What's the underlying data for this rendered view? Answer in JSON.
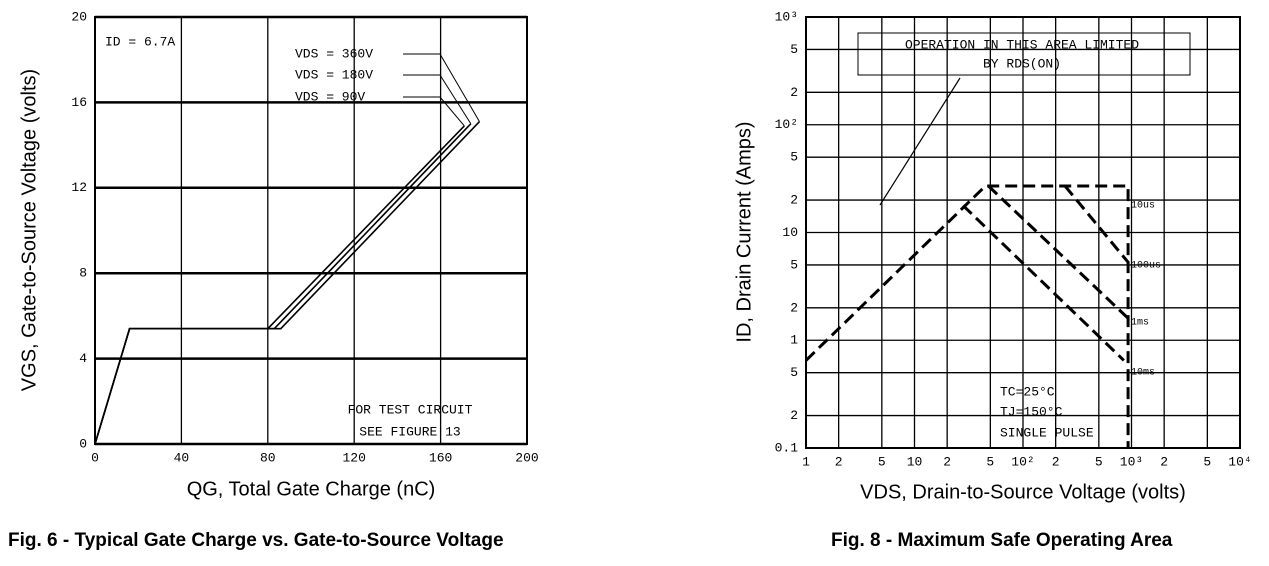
{
  "chart_data": [
    {
      "type": "line",
      "title": "Fig. 6 - Typical Gate Charge vs. Gate-to-Source Voltage",
      "x_label": "QG, Total Gate Charge (nC)",
      "y_label": "VGS, Gate-to-Source Voltage (volts)",
      "xlim": [
        0,
        200
      ],
      "ylim": [
        0,
        20
      ],
      "xticks": [
        0,
        40,
        80,
        120,
        160,
        200
      ],
      "yticks": [
        0,
        4,
        8,
        12,
        16,
        20
      ],
      "grid": true,
      "annotations": [
        "ID = 6.7A",
        "FOR TEST CIRCUIT",
        "SEE FIGURE 13"
      ],
      "series": [
        {
          "name": "VDS = 360V",
          "color": "#000000",
          "x": [
            0,
            16,
            86,
            178
          ],
          "values": [
            0,
            5.4,
            5.4,
            15.1
          ]
        },
        {
          "name": "VDS = 180V",
          "color": "#000000",
          "x": [
            0,
            16,
            83,
            174
          ],
          "values": [
            0,
            5.4,
            5.4,
            15
          ]
        },
        {
          "name": "VDS = 90V",
          "color": "#000000",
          "x": [
            0,
            16,
            80,
            171
          ],
          "values": [
            0,
            5.4,
            5.4,
            14.9
          ]
        }
      ]
    },
    {
      "type": "line",
      "title": "Fig. 8 - Maximum Safe Operating Area",
      "x_label": "VDS, Drain-to-Source Voltage (volts)",
      "y_label": "ID, Drain Current (Amps)",
      "log_scale": true,
      "line_style": "dashed",
      "xlim": [
        1,
        10000
      ],
      "ylim": [
        0.1,
        1000
      ],
      "xticks": [
        1,
        2,
        5,
        10,
        {
          "value": 20,
          "label": "2"
        },
        {
          "value": 50,
          "label": "5"
        },
        {
          "value": 100,
          "label": "10²"
        },
        {
          "value": 200,
          "label": "2"
        },
        {
          "value": 500,
          "label": "5"
        },
        {
          "value": 1000,
          "label": "10³"
        },
        {
          "value": 2000,
          "label": "2"
        },
        {
          "value": 5000,
          "label": "5"
        },
        {
          "value": 10000,
          "label": "10⁴"
        }
      ],
      "yticks": [
        0.1,
        {
          "value": 0.2,
          "label": "2"
        },
        {
          "value": 0.5,
          "label": "5"
        },
        1,
        2,
        5,
        10,
        {
          "value": 20,
          "label": "2"
        },
        {
          "value": 50,
          "label": "5"
        },
        {
          "value": 100,
          "label": "10²"
        },
        {
          "value": 200,
          "label": "2"
        },
        {
          "value": 500,
          "label": "5"
        },
        {
          "value": 1000,
          "label": "10³"
        }
      ],
      "grid": true,
      "annotations": [
        "OPERATION IN THIS AREA LIMITED",
        "BY RDS(ON)",
        "TC=25°C",
        "TJ=150°C",
        "SINGLE PULSE"
      ],
      "series": [
        {
          "name": "10us",
          "color": "#000000",
          "x": [
            1,
            45,
            930,
            930
          ],
          "values": [
            0.65,
            27,
            27,
            0.1
          ]
        },
        {
          "name": "100us",
          "color": "#000000",
          "x": [
            244,
            930
          ],
          "values": [
            27,
            5.3
          ]
        },
        {
          "name": "1ms",
          "color": "#000000",
          "x": [
            48,
            930
          ],
          "values": [
            27,
            1.6
          ]
        },
        {
          "name": "10ms",
          "color": "#000000",
          "x": [
            28,
            850
          ],
          "values": [
            17.8,
            0.65
          ]
        }
      ]
    }
  ]
}
